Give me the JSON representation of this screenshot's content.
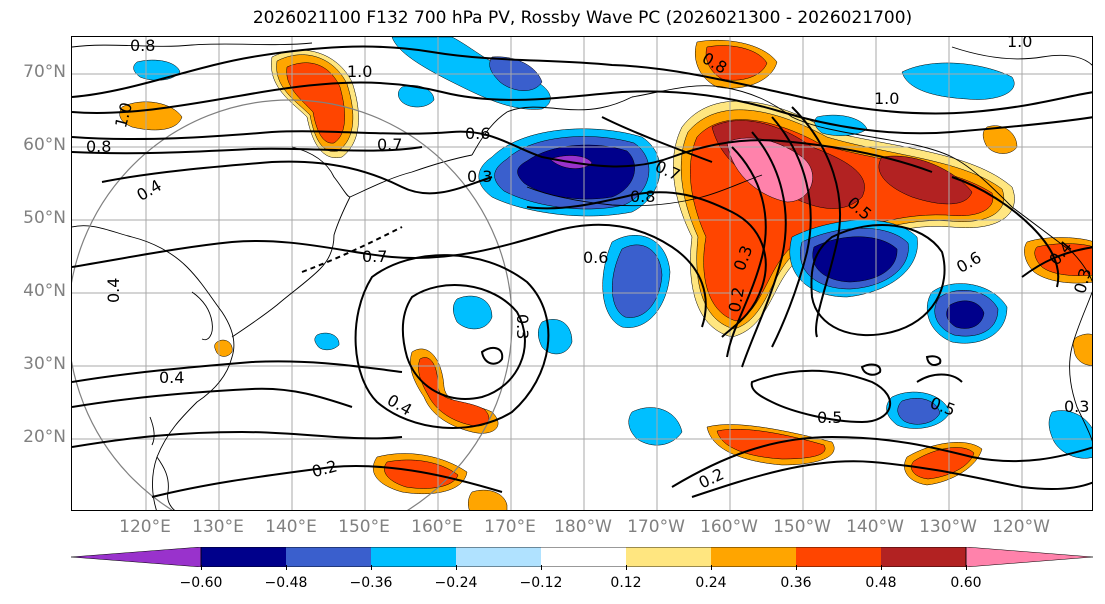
{
  "title": "2026021100 F132 700 hPa PV, Rossby Wave PC (2026021300 - 2026021700)",
  "lat_labels": [
    "70°N",
    "60°N",
    "50°N",
    "40°N",
    "30°N",
    "20°N"
  ],
  "lon_labels": [
    "120°E",
    "130°E",
    "140°E",
    "150°E",
    "160°E",
    "170°E",
    "180°W",
    "170°W",
    "160°W",
    "150°W",
    "140°W",
    "130°W",
    "120°W"
  ],
  "contour_labels": [
    "0.8",
    "1.0",
    "1.0",
    "0.7",
    "0.6",
    "0.8",
    "1.0",
    "1.0",
    "0.8",
    "0.4",
    "0.3",
    "0.7",
    "0.8",
    "0.6",
    "0.7",
    "0.5",
    "0.3",
    "0.2",
    "0.3",
    "0.6",
    "0.4",
    "0.4",
    "0.4",
    "0.2",
    "0.5",
    "0.5",
    "0.2",
    "0.3",
    "0.3",
    "0.4"
  ],
  "colorbar": {
    "ticks": [
      "−0.60",
      "−0.48",
      "−0.36",
      "−0.24",
      "−0.12",
      "0.12",
      "0.24",
      "0.36",
      "0.48",
      "0.60"
    ],
    "colors": [
      "#9932cc",
      "#00008b",
      "#3a5fcd",
      "#00bfff",
      "#b0e2ff",
      "#ffffff",
      "#ffe680",
      "#ffa500",
      "#ff4500",
      "#b22222",
      "#ff82ab"
    ]
  },
  "field_colors": {
    "neg_strong": "#00008b",
    "neg_mid": "#3a5fcd",
    "neg_weak": "#00bfff",
    "neg_faint": "#b0e2ff",
    "pos_faint": "#ffe680",
    "pos_weak": "#ffa500",
    "pos_mid": "#ff4500",
    "pos_strong": "#b22222",
    "pos_max": "#ff82ab",
    "neg_max": "#9932cc"
  }
}
